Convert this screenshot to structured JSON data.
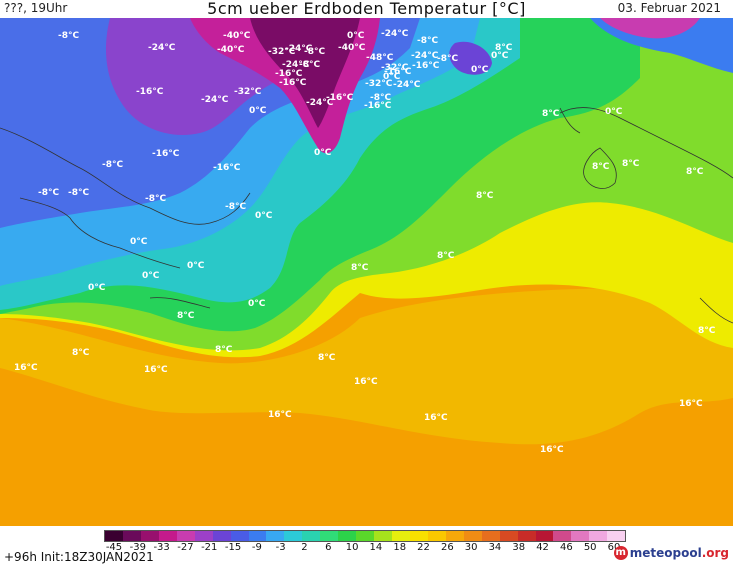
{
  "header": {
    "left": "???, 19Uhr",
    "title": "5cm ueber Erdboden Temperatur [°C]",
    "right": "03. Februar 2021"
  },
  "footer": {
    "run": "+96h  Init:18Z30JAN2021",
    "logo_name": "meteopool",
    "logo_tld": ".org"
  },
  "legend": {
    "ticks": [
      "-45",
      "-39",
      "-33",
      "-27",
      "-21",
      "-15",
      "-9",
      "-3",
      "2",
      "6",
      "10",
      "14",
      "18",
      "22",
      "26",
      "30",
      "34",
      "38",
      "42",
      "46",
      "50",
      "60"
    ],
    "colors": [
      "#3a0030",
      "#6a0a5a",
      "#98106e",
      "#c41a8c",
      "#c83cb0",
      "#9c40c8",
      "#6b44d6",
      "#4a5ce6",
      "#3b7cf0",
      "#38a8f2",
      "#2ccad8",
      "#2ad2b0",
      "#30dc78",
      "#2cd24a",
      "#5ad82a",
      "#a6e21c",
      "#e6ee0e",
      "#f8e000",
      "#fac800",
      "#f6a80a",
      "#f08c14",
      "#e66e1e",
      "#d84a22",
      "#c82c28",
      "#b81634",
      "#d04a8c",
      "#e278c0",
      "#f0a8e0",
      "#f8d0f0"
    ]
  },
  "map_labels": [
    "-8°C",
    "-24°C",
    "-40°C",
    "-32°C",
    "-40°C",
    "-24°C",
    "-16°C",
    "-8°C",
    "-8°C",
    "-16°C",
    "-24°C",
    "-16°C",
    "-24°C",
    "-40°C",
    "-32°C",
    "-16°C",
    "-48°C",
    "-8°C",
    "0°C",
    "-8°C",
    "-16°C",
    "-32°C",
    "-24°C",
    "0°C",
    "0°C",
    "-24°C",
    "-8°C",
    "-16°C",
    "-24°C",
    "-32°C",
    "-24°C",
    "-16°C",
    "0°C",
    "8°C",
    "0°C",
    "0°C",
    "-16°C",
    "-16°C",
    "-8°C",
    "0°C",
    "-8°C",
    "8°C",
    "8°C",
    "8°C",
    "-8°C",
    "-8°C",
    "-8°C",
    "8°C",
    "0°C",
    "0°C",
    "0°C",
    "0°C",
    "0°C",
    "8°C",
    "8°C",
    "8°C",
    "8°C",
    "8°C",
    "8°C",
    "8°C",
    "16°C",
    "16°C",
    "16°C",
    "16°C",
    "16°C",
    "16°C",
    "16°C",
    "8°C",
    "0°C"
  ]
}
